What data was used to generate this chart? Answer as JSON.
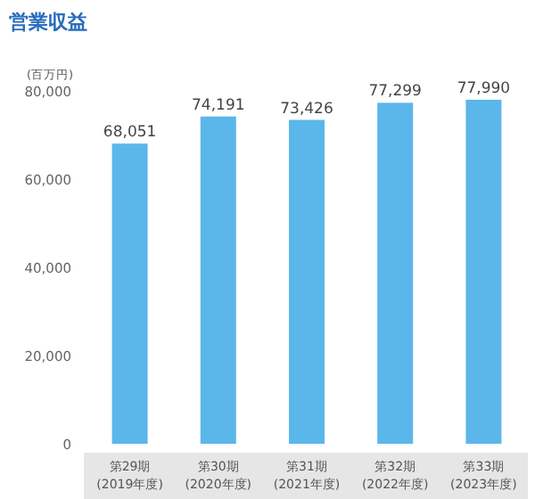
{
  "chart_data": {
    "type": "bar",
    "title": "営業収益",
    "ylabel": "(百万円)",
    "categories": [
      "第29期\n(2019年度)",
      "第30期\n(2020年度)",
      "第31期\n(2021年度)",
      "第32期\n(2022年度)",
      "第33期\n(2023年度)"
    ],
    "values": [
      68051,
      74191,
      73426,
      77299,
      77990
    ],
    "value_labels": [
      "68,051",
      "74,191",
      "73,426",
      "77,299",
      "77,990"
    ],
    "color": "#5bb6ea",
    "ylim": [
      0,
      80000
    ],
    "yticks": [
      {
        "value": 0,
        "label": "0"
      },
      {
        "value": 20000,
        "label": "20,000"
      },
      {
        "value": 40000,
        "label": "40,000"
      },
      {
        "value": 60000,
        "label": "60,000"
      },
      {
        "value": 80000,
        "label": "80,000"
      }
    ]
  }
}
